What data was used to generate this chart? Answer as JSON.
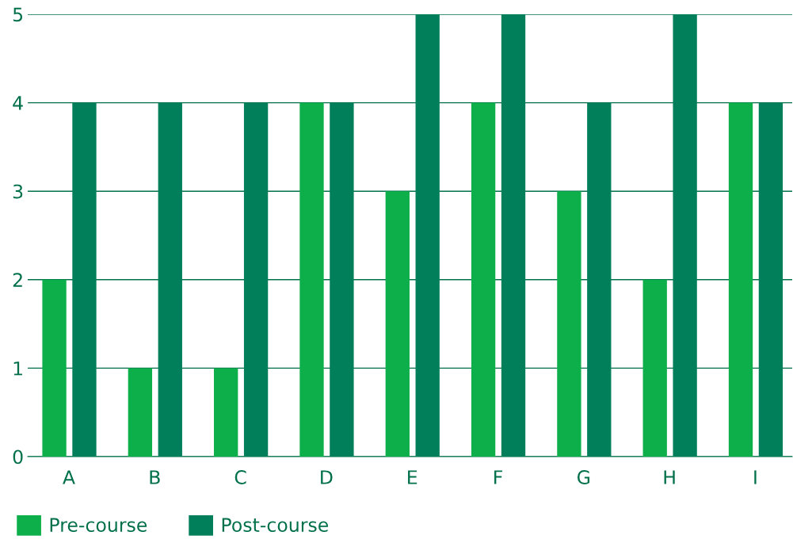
{
  "chart_data": {
    "type": "bar",
    "categories": [
      "A",
      "B",
      "C",
      "D",
      "E",
      "F",
      "G",
      "H",
      "I"
    ],
    "series": [
      {
        "name": "Pre-course",
        "color": "#0daf4a",
        "values": [
          2,
          1,
          1,
          4,
          3,
          4,
          3,
          2,
          4
        ]
      },
      {
        "name": "Post-course",
        "color": "#007f5a",
        "values": [
          4,
          4,
          4,
          4,
          5,
          5,
          4,
          5,
          4
        ]
      }
    ],
    "ylim": [
      0,
      5
    ],
    "yticks": [
      0,
      1,
      2,
      3,
      4,
      5
    ],
    "grid": "y",
    "legend": "bottom left"
  }
}
